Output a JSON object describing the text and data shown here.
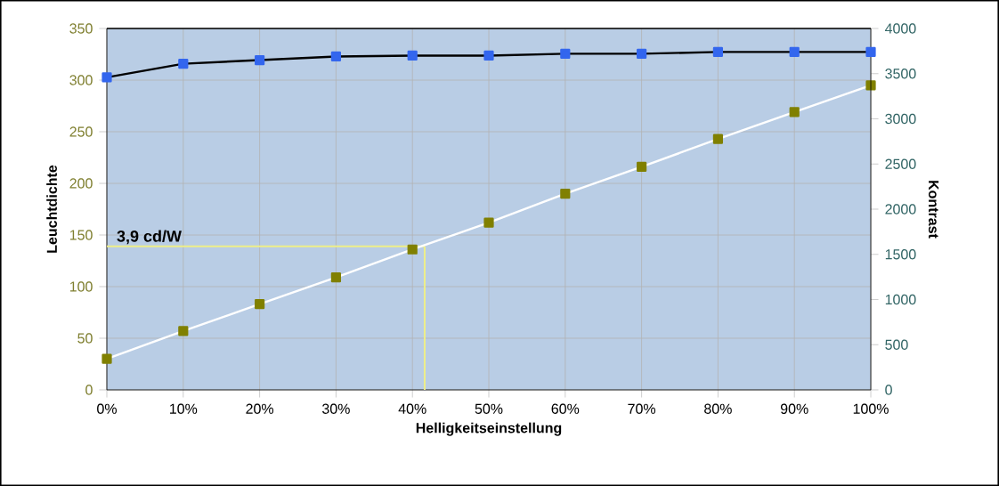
{
  "chart_data": {
    "type": "line",
    "xlabel": "Helligkeitseinstellung",
    "ylabel": "Leuchtdichte",
    "y2label": "Kontrast",
    "x": [
      0,
      10,
      20,
      30,
      40,
      50,
      60,
      70,
      80,
      90,
      100
    ],
    "series": [
      {
        "color": "#3366ee",
        "axis": "y2",
        "values": [
          3460,
          3610,
          3650,
          3690,
          3700,
          3700,
          3720,
          3720,
          3740,
          3740,
          3740
        ]
      },
      {
        "color": "#808000",
        "axis": "y",
        "values": [
          30,
          57,
          83,
          109,
          136,
          162,
          190,
          216,
          243,
          269,
          295
        ]
      }
    ],
    "xlim": [
      0,
      100
    ],
    "xticks": [
      {
        "value": 0,
        "label": "0%"
      },
      {
        "value": 10,
        "label": "10%"
      },
      {
        "value": 20,
        "label": "20%"
      },
      {
        "value": 30,
        "label": "30%"
      },
      {
        "value": 40,
        "label": "40%"
      },
      {
        "value": 50,
        "label": "50%"
      },
      {
        "value": 60,
        "label": "60%"
      },
      {
        "value": 70,
        "label": "70%"
      },
      {
        "value": 80,
        "label": "80%"
      },
      {
        "value": 90,
        "label": "90%"
      },
      {
        "value": 100,
        "label": "100%"
      }
    ],
    "ylim": [
      0,
      350
    ],
    "yticks": [
      0,
      50,
      100,
      150,
      200,
      250,
      300,
      350
    ],
    "y2lim": [
      0,
      4000
    ],
    "y2ticks": [
      0,
      500,
      1000,
      1500,
      2000,
      2500,
      3000,
      3500,
      4000
    ],
    "ref_lines": [
      {
        "axis": "y",
        "value": 139,
        "color": "#eeee88"
      },
      {
        "axis": "x",
        "value": 41.6,
        "color": "#eeee88"
      }
    ],
    "annotations": [
      "3,9 cd/W"
    ],
    "grid": true,
    "marker": "square",
    "line_style": "solid"
  }
}
